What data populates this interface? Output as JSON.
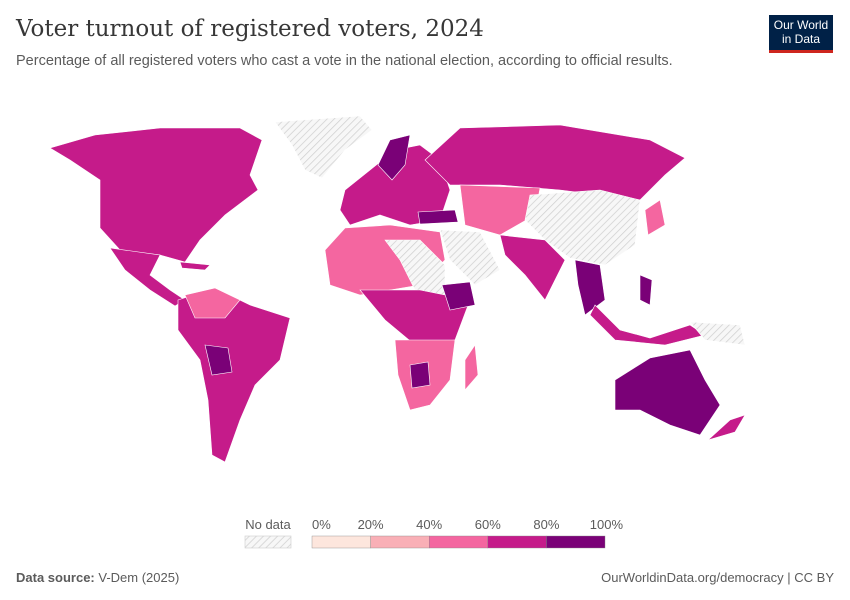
{
  "header": {
    "title": "Voter turnout of registered voters, 2024",
    "subtitle": "Percentage of all registered voters who cast a vote in the national election, according to official results.",
    "logo_line1": "Our World",
    "logo_line2": "in Data"
  },
  "legend": {
    "no_data_label": "No data",
    "ticks": [
      "0%",
      "20%",
      "40%",
      "60%",
      "80%",
      "100%"
    ],
    "bins": [
      {
        "range": "0-20%",
        "color": "#fde6dd"
      },
      {
        "range": "20-40%",
        "color": "#f9afb6"
      },
      {
        "range": "40-60%",
        "color": "#f466a0"
      },
      {
        "range": "60-80%",
        "color": "#c51b8a"
      },
      {
        "range": "80-100%",
        "color": "#7a0177"
      }
    ]
  },
  "footer": {
    "source_label": "Data source:",
    "source": "V-Dem (2025)",
    "link": "OurWorldinData.org/democracy | CC BY"
  }
}
